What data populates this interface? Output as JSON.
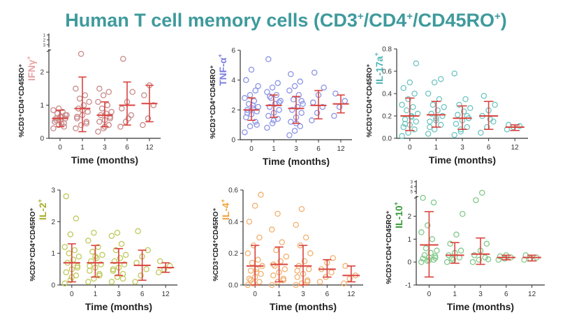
{
  "figure": {
    "title_prefix": "Human T cell memory cells (CD3",
    "title_part2": "/CD4",
    "title_part3": "/CD45RO",
    "title_suffix": ")",
    "title_sup": "+"
  },
  "chart_data": [
    {
      "type": "scatter",
      "title": "IFNγ",
      "title_sup": "+",
      "title_color": "#e8a3a3",
      "point_color": "#c98a8a",
      "ylabel": "%CD3⁺CD4⁺CD45RO⁺",
      "xlabel": "Time (months)",
      "categories": [
        "0",
        "1",
        "3",
        "6",
        "12"
      ],
      "yticks": [
        "0",
        "1",
        "2"
      ],
      "ytick_values": [
        0,
        1,
        2
      ],
      "ylim": [
        0,
        2.7
      ],
      "broken_axis": true,
      "broken_axis_tick_labels": [
        "1",
        "2",
        "3"
      ],
      "stats": [
        {
          "mean": 0.6,
          "sd_low": 0.35,
          "sd_high": 0.85
        },
        {
          "mean": 0.9,
          "sd_low": 0.2,
          "sd_high": 1.85
        },
        {
          "mean": 0.7,
          "sd_low": 0.35,
          "sd_high": 1.1
        },
        {
          "mean": 1.0,
          "sd_low": 0.4,
          "sd_high": 1.7
        },
        {
          "mean": 1.05,
          "sd_low": 0.5,
          "sd_high": 1.6
        }
      ],
      "points": [
        [
          0.3,
          0.4,
          0.45,
          0.5,
          0.55,
          0.6,
          0.6,
          0.65,
          0.7,
          0.75,
          0.8,
          0.85,
          0.9,
          0.35,
          0.5,
          0.65,
          0.7,
          0.55,
          0.45
        ],
        [
          0.3,
          0.4,
          0.5,
          0.6,
          0.7,
          0.8,
          0.9,
          1.0,
          1.1,
          1.2,
          1.3,
          1.5,
          2.55,
          0.45,
          0.65,
          0.85
        ],
        [
          0.2,
          0.3,
          0.4,
          0.5,
          0.55,
          0.6,
          0.7,
          0.75,
          0.8,
          0.9,
          1.0,
          1.1,
          1.3,
          1.4,
          1.5,
          0.35,
          0.65
        ],
        [
          0.35,
          0.5,
          0.7,
          0.9,
          1.1,
          1.4,
          2.4,
          0.6
        ],
        [
          0.4,
          0.6,
          1.0,
          1.3,
          1.6
        ]
      ]
    },
    {
      "type": "scatter",
      "title": "TNF-α",
      "title_sup": "+",
      "title_color": "#7b7fe0",
      "point_color": "#8c94e6",
      "ylabel": "%CD3⁺CD4⁺CD45RO⁺",
      "xlabel": "Time (months)",
      "categories": [
        "0",
        "1",
        "3",
        "6",
        "12"
      ],
      "yticks": [
        "0",
        "2",
        "4",
        "6"
      ],
      "ytick_values": [
        0,
        2,
        4,
        6
      ],
      "ylim": [
        0,
        6
      ],
      "stats": [
        {
          "mean": 2.0,
          "sd_low": 1.3,
          "sd_high": 2.8
        },
        {
          "mean": 2.3,
          "sd_low": 1.5,
          "sd_high": 3.0
        },
        {
          "mean": 2.1,
          "sd_low": 1.1,
          "sd_high": 2.9
        },
        {
          "mean": 2.3,
          "sd_low": 1.4,
          "sd_high": 3.3
        },
        {
          "mean": 2.4,
          "sd_low": 1.8,
          "sd_high": 3.0
        }
      ],
      "points": [
        [
          0.5,
          0.9,
          1.2,
          1.5,
          1.7,
          1.9,
          2.0,
          2.1,
          2.2,
          2.4,
          2.6,
          2.8,
          3.0,
          3.3,
          4.0,
          4.7,
          1.0,
          1.8,
          2.3,
          3.6
        ],
        [
          0.8,
          1.1,
          1.4,
          1.6,
          1.8,
          2.0,
          2.2,
          2.4,
          2.6,
          2.8,
          3.0,
          3.2,
          3.5,
          3.8,
          5.4,
          1.3,
          2.5,
          2.9
        ],
        [
          0.3,
          0.6,
          0.9,
          1.2,
          1.5,
          1.8,
          2.0,
          2.2,
          2.4,
          2.7,
          3.0,
          3.3,
          3.6,
          3.9,
          4.4,
          1.1,
          2.6
        ],
        [
          1.3,
          1.8,
          2.2,
          2.5,
          3.0,
          3.5,
          4.5
        ],
        [
          1.6,
          2.2,
          2.6,
          3.1
        ]
      ]
    },
    {
      "type": "scatter",
      "title": "IL-17a",
      "title_sup": "+",
      "title_color": "#4fb3b3",
      "point_color": "#6fc5c2",
      "ylabel": "%CD3⁺CD4⁺CD45RO⁺",
      "xlabel": "Time (months)",
      "categories": [
        "0",
        "1",
        "3",
        "6",
        "12"
      ],
      "yticks": [
        "0.0",
        "0.2",
        "0.4",
        "0.6",
        "0.8"
      ],
      "ytick_values": [
        0,
        0.2,
        0.4,
        0.6,
        0.8
      ],
      "ylim": [
        0,
        0.8
      ],
      "stats": [
        {
          "mean": 0.2,
          "sd_low": 0.07,
          "sd_high": 0.36
        },
        {
          "mean": 0.21,
          "sd_low": 0.1,
          "sd_high": 0.33
        },
        {
          "mean": 0.18,
          "sd_low": 0.08,
          "sd_high": 0.29
        },
        {
          "mean": 0.2,
          "sd_low": 0.08,
          "sd_high": 0.33
        },
        {
          "mean": 0.1,
          "sd_low": 0.07,
          "sd_high": 0.12
        }
      ],
      "points": [
        [
          0.02,
          0.05,
          0.08,
          0.1,
          0.12,
          0.15,
          0.17,
          0.2,
          0.22,
          0.25,
          0.28,
          0.3,
          0.35,
          0.4,
          0.45,
          0.5,
          0.67,
          0.13,
          0.19
        ],
        [
          0.04,
          0.08,
          0.12,
          0.15,
          0.18,
          0.2,
          0.22,
          0.25,
          0.28,
          0.3,
          0.35,
          0.4,
          0.5,
          0.53,
          0.1,
          0.16
        ],
        [
          0.03,
          0.06,
          0.1,
          0.13,
          0.16,
          0.18,
          0.21,
          0.24,
          0.27,
          0.3,
          0.35,
          0.58,
          0.08,
          0.2
        ],
        [
          0.05,
          0.1,
          0.15,
          0.2,
          0.25,
          0.3,
          0.38,
          0.17
        ],
        [
          0.08,
          0.1,
          0.11,
          0.12
        ]
      ]
    },
    {
      "type": "scatter",
      "title": "IL-2",
      "title_sup": "+",
      "title_color": "#a8ad2a",
      "point_color": "#c0c95a",
      "ylabel": "%CD3⁺CD4⁺CD45RO⁺",
      "xlabel": "Time (months)",
      "categories": [
        "0",
        "1",
        "3",
        "6",
        "12"
      ],
      "yticks": [
        "0",
        "1",
        "2",
        "3"
      ],
      "ytick_values": [
        0,
        1,
        2,
        3
      ],
      "ylim": [
        0,
        3
      ],
      "stats": [
        {
          "mean": 0.7,
          "sd_low": 0.1,
          "sd_high": 1.3
        },
        {
          "mean": 0.7,
          "sd_low": 0.25,
          "sd_high": 1.25
        },
        {
          "mean": 0.7,
          "sd_low": 0.3,
          "sd_high": 1.15
        },
        {
          "mean": 0.62,
          "sd_low": 0.15,
          "sd_high": 1.1
        },
        {
          "mean": 0.55,
          "sd_low": 0.4,
          "sd_high": 0.7
        }
      ],
      "points": [
        [
          0.05,
          0.15,
          0.3,
          0.4,
          0.5,
          0.6,
          0.7,
          0.8,
          0.9,
          1.0,
          1.1,
          1.2,
          1.6,
          2.1,
          2.8,
          0.25,
          0.55
        ],
        [
          0.1,
          0.2,
          0.35,
          0.45,
          0.55,
          0.65,
          0.75,
          0.85,
          0.95,
          1.05,
          1.2,
          1.4,
          1.65,
          0.3,
          0.6,
          0.9
        ],
        [
          0.1,
          0.25,
          0.35,
          0.45,
          0.55,
          0.65,
          0.75,
          0.85,
          0.95,
          1.1,
          1.3,
          1.55,
          1.65,
          0.2,
          0.5
        ],
        [
          0.1,
          0.3,
          0.5,
          0.7,
          0.9,
          1.1,
          1.7
        ],
        [
          0.4,
          0.5,
          0.6,
          0.75
        ]
      ]
    },
    {
      "type": "scatter",
      "title": "IL-4",
      "title_sup": "+",
      "title_color": "#f0a33c",
      "point_color": "#f2b070",
      "ylabel": "%CD3⁺CD4⁺CD45RO⁺",
      "xlabel": "Time (months)",
      "categories": [
        "0",
        "1",
        "3",
        "6",
        "12"
      ],
      "yticks": [
        "0.0",
        "0.2",
        "0.4",
        "0.6"
      ],
      "ytick_values": [
        0,
        0.2,
        0.4,
        0.6
      ],
      "ylim": [
        0,
        0.6
      ],
      "stats": [
        {
          "mean": 0.12,
          "sd_low": 0.0,
          "sd_high": 0.25
        },
        {
          "mean": 0.13,
          "sd_low": 0.02,
          "sd_high": 0.24
        },
        {
          "mean": 0.12,
          "sd_low": 0.0,
          "sd_high": 0.25
        },
        {
          "mean": 0.1,
          "sd_low": 0.05,
          "sd_high": 0.16
        },
        {
          "mean": 0.06,
          "sd_low": 0.02,
          "sd_high": 0.12
        }
      ],
      "points": [
        [
          0.0,
          0.01,
          0.02,
          0.04,
          0.05,
          0.07,
          0.09,
          0.1,
          0.12,
          0.14,
          0.16,
          0.2,
          0.25,
          0.3,
          0.4,
          0.5,
          0.57,
          0.03,
          0.08
        ],
        [
          0.0,
          0.02,
          0.04,
          0.06,
          0.08,
          0.1,
          0.12,
          0.15,
          0.18,
          0.22,
          0.27,
          0.35,
          0.45,
          0.03,
          0.13
        ],
        [
          0.0,
          0.01,
          0.03,
          0.05,
          0.07,
          0.1,
          0.12,
          0.15,
          0.2,
          0.25,
          0.3,
          0.38,
          0.48,
          0.02,
          0.09
        ],
        [
          0.02,
          0.05,
          0.08,
          0.1,
          0.14,
          0.17
        ],
        [
          0.01,
          0.04,
          0.06,
          0.12
        ]
      ]
    },
    {
      "type": "scatter",
      "title": "IL-10",
      "title_sup": "+",
      "title_color": "#3a9a3a",
      "point_color": "#82c98a",
      "ylabel": "%CD3⁺CD4⁺CD45RO⁺",
      "xlabel": "Time (months)",
      "categories": [
        "0",
        "1",
        "3",
        "6",
        "12"
      ],
      "yticks": [
        "-1",
        "0",
        "1",
        "2"
      ],
      "ytick_values": [
        -1,
        0,
        1,
        2
      ],
      "ylim": [
        -1,
        2.9
      ],
      "broken_axis": true,
      "broken_axis_tick_labels": [
        "3",
        "4",
        "5"
      ],
      "stats": [
        {
          "mean": 0.75,
          "sd_low": -0.65,
          "sd_high": 2.2
        },
        {
          "mean": 0.3,
          "sd_low": -0.05,
          "sd_high": 0.85
        },
        {
          "mean": 0.35,
          "sd_low": -0.1,
          "sd_high": 1.05
        },
        {
          "mean": 0.2,
          "sd_low": 0.1,
          "sd_high": 0.3
        },
        {
          "mean": 0.2,
          "sd_low": 0.05,
          "sd_high": 0.3
        }
      ],
      "points": [
        [
          0.0,
          0.05,
          0.1,
          0.15,
          0.2,
          0.25,
          0.3,
          0.4,
          0.5,
          0.6,
          1.0,
          1.3,
          1.6,
          2.6,
          2.8,
          0.08,
          0.18
        ],
        [
          0.0,
          0.1,
          0.2,
          0.3,
          0.4,
          0.5,
          0.8,
          1.2,
          2.1,
          0.15
        ],
        [
          0.0,
          0.1,
          0.2,
          0.3,
          0.5,
          0.8,
          2.7,
          3.1,
          0.12
        ],
        [
          0.1,
          0.15,
          0.2,
          0.25,
          0.3
        ],
        [
          0.1,
          0.15,
          0.2,
          0.3
        ]
      ]
    }
  ]
}
